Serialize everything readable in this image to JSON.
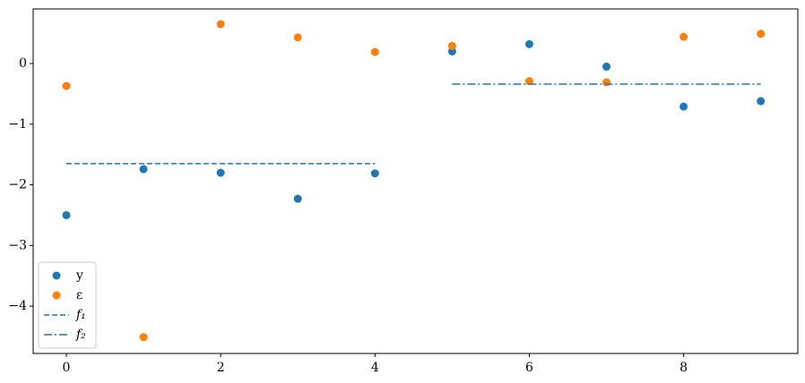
{
  "chart_data": {
    "type": "scatter",
    "xlim": [
      -0.43,
      9.48
    ],
    "ylim": [
      -4.78,
      0.9
    ],
    "xticks": [
      0,
      2,
      4,
      6,
      8
    ],
    "yticks": [
      {
        "value": -4,
        "label": "−4"
      },
      {
        "value": -3,
        "label": "−3"
      },
      {
        "value": -2,
        "label": "−2"
      },
      {
        "value": -1,
        "label": "−1"
      },
      0
    ],
    "legend": "lower left",
    "series": [
      {
        "name": "y",
        "color": "#1f77b4",
        "mark": "point",
        "x": [
          0,
          1,
          2,
          3,
          4,
          5,
          6,
          7,
          8,
          9
        ],
        "values": [
          -2.5,
          -1.74,
          -1.8,
          -2.23,
          -1.81,
          0.2,
          0.32,
          -0.05,
          -0.71,
          -0.62
        ]
      },
      {
        "name": "ε",
        "color": "#ff7f0e",
        "mark": "point",
        "x": [
          0,
          1,
          2,
          3,
          4,
          5,
          6,
          7,
          8,
          9
        ],
        "values": [
          -0.37,
          -4.51,
          0.65,
          0.43,
          0.19,
          0.29,
          -0.29,
          -0.31,
          0.44,
          0.49
        ]
      },
      {
        "name": "f₁",
        "color": "#1f77b4",
        "mark": "line",
        "dash": "6,3",
        "x": [
          0,
          4
        ],
        "values": [
          -1.65,
          -1.65
        ]
      },
      {
        "name": "f₂",
        "color": "#1f77b4",
        "mark": "line",
        "dash": "9,3,2,3",
        "x": [
          5,
          9
        ],
        "values": [
          -0.34,
          -0.34
        ]
      }
    ]
  }
}
